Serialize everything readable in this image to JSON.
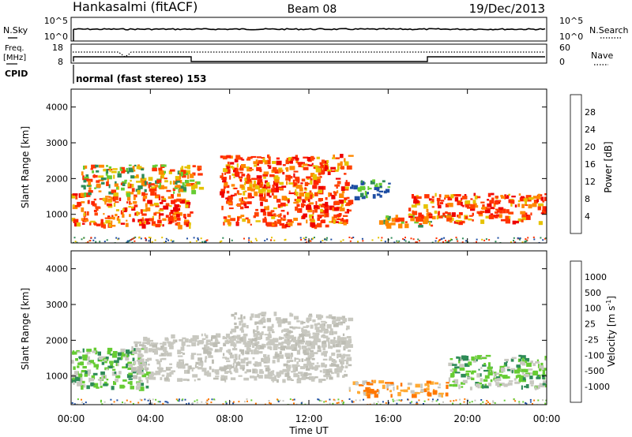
{
  "header": {
    "station": "Hankasalmi (fitACF)",
    "beam": "Beam 08",
    "date": "19/Dec/2013"
  },
  "noise_panel": {
    "left_label": "N.Sky",
    "left_ticks": [
      "10^5",
      "10^0"
    ],
    "right_label": "N.Search",
    "right_ticks": [
      "10^5",
      "10^0"
    ]
  },
  "freq_panel": {
    "left_label_line1": "Freq.",
    "left_label_line2": "[MHz]",
    "left_ticks": [
      "18",
      "8"
    ],
    "right_label": "Nave",
    "right_ticks": [
      "60",
      "0"
    ],
    "cpid_label": "CPID",
    "cpid_text": "normal (fast stereo) 153"
  },
  "chart_data": [
    {
      "type": "heatmap",
      "title": "",
      "ylabel": "Slant Range [km]",
      "yticks": [
        "1000",
        "2000",
        "3000",
        "4000"
      ],
      "ylim": [
        200,
        4500
      ],
      "colorbar_label": "Power [dB]",
      "colorbar_ticks": [
        "28",
        "24",
        "20",
        "16",
        "12",
        "8",
        "4"
      ],
      "colors": [
        "#0000ff",
        "#1f4ea3",
        "#2e8b57",
        "#66cc33",
        "#e6c200",
        "#ff8800",
        "#ff3300",
        "#ee0000"
      ],
      "echo_regions": [
        {
          "x": [
            0,
            6
          ],
          "range_km": [
            700,
            1600
          ],
          "level": "high"
        },
        {
          "x": [
            0.5,
            6.5
          ],
          "range_km": [
            1600,
            2400
          ],
          "level": "medium"
        },
        {
          "x": [
            7.5,
            14
          ],
          "range_km": [
            700,
            2700
          ],
          "level": "high"
        },
        {
          "x": [
            14,
            16
          ],
          "range_km": [
            1500,
            2000
          ],
          "level": "low"
        },
        {
          "x": [
            15.5,
            19
          ],
          "range_km": [
            700,
            1000
          ],
          "level": "medium"
        },
        {
          "x": [
            17,
            19
          ],
          "range_km": [
            900,
            1600
          ],
          "level": "high"
        },
        {
          "x": [
            19,
            24
          ],
          "range_km": [
            800,
            1600
          ],
          "level": "high"
        }
      ]
    },
    {
      "type": "heatmap",
      "title": "",
      "ylabel": "Slant Range [km]",
      "yticks": [
        "1000",
        "2000",
        "3000",
        "4000"
      ],
      "ylim": [
        200,
        4500
      ],
      "xlabel": "Time UT",
      "xticks": [
        "00:00",
        "04:00",
        "08:00",
        "12:00",
        "16:00",
        "20:00",
        "00:00"
      ],
      "xlim": [
        0,
        24
      ],
      "colorbar_label": "Velocity [m s^-1]",
      "colorbar_ticks": [
        "1000",
        "500",
        "100",
        "25",
        "-25",
        "-100",
        "-500",
        "-1000"
      ],
      "colors": [
        "#1f3fa3",
        "#1f6f9f",
        "#2e8b57",
        "#66cc33",
        "#c8c8c0",
        "#ffaa33",
        "#ff7700",
        "#ff3300",
        "#ee0000"
      ],
      "echo_regions": [
        {
          "x": [
            0,
            4
          ],
          "range_km": [
            700,
            1800
          ],
          "level": "green"
        },
        {
          "x": [
            3,
            14
          ],
          "range_km": [
            900,
            2200
          ],
          "level": "grey"
        },
        {
          "x": [
            8,
            14
          ],
          "range_km": [
            1800,
            2800
          ],
          "level": "grey"
        },
        {
          "x": [
            14,
            19
          ],
          "range_km": [
            500,
            900
          ],
          "level": "orange"
        },
        {
          "x": [
            19,
            24
          ],
          "range_km": [
            700,
            1600
          ],
          "level": "green"
        }
      ]
    }
  ]
}
